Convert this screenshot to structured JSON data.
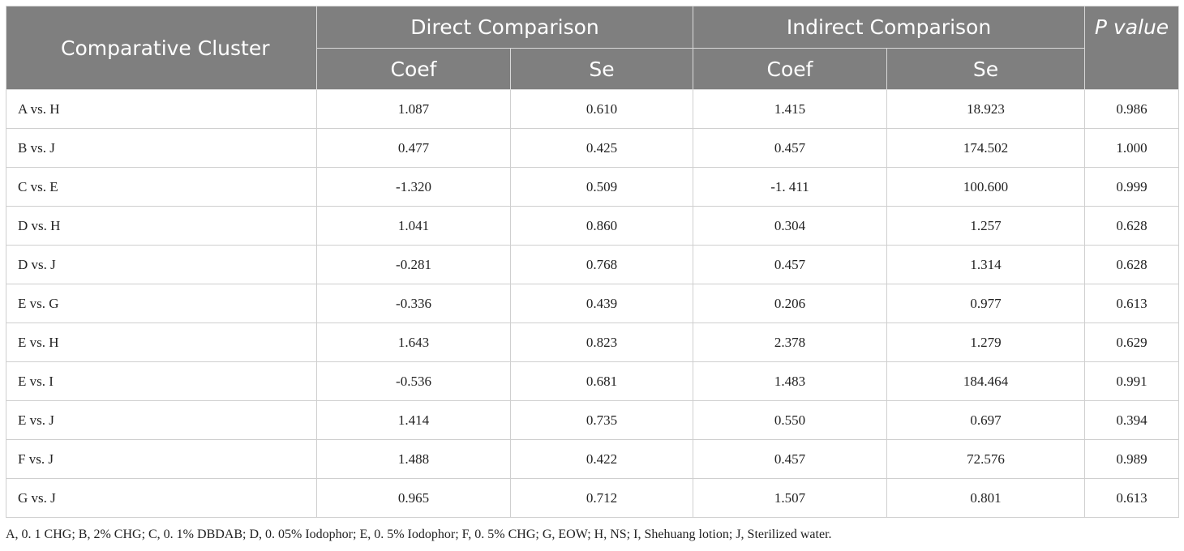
{
  "header": {
    "cluster": "Comparative Cluster",
    "direct": "Direct Comparison",
    "indirect": "Indirect Comparison",
    "pvalue": "P value",
    "coef": "Coef",
    "se": "Se"
  },
  "rows": [
    {
      "cluster": "A vs. H",
      "d_coef": "1.087",
      "d_se": "0.610",
      "i_coef": "1.415",
      "i_se": "18.923",
      "p": "0.986"
    },
    {
      "cluster": "B vs. J",
      "d_coef": "0.477",
      "d_se": "0.425",
      "i_coef": "0.457",
      "i_se": "174.502",
      "p": "1.000"
    },
    {
      "cluster": "C vs. E",
      "d_coef": "-1.320",
      "d_se": "0.509",
      "i_coef": "-1. 411",
      "i_se": "100.600",
      "p": "0.999"
    },
    {
      "cluster": "D vs. H",
      "d_coef": "1.041",
      "d_se": "0.860",
      "i_coef": "0.304",
      "i_se": "1.257",
      "p": "0.628"
    },
    {
      "cluster": "D vs. J",
      "d_coef": "-0.281",
      "d_se": "0.768",
      "i_coef": "0.457",
      "i_se": "1.314",
      "p": "0.628"
    },
    {
      "cluster": "E vs. G",
      "d_coef": "-0.336",
      "d_se": "0.439",
      "i_coef": "0.206",
      "i_se": "0.977",
      "p": "0.613"
    },
    {
      "cluster": "E vs. H",
      "d_coef": "1.643",
      "d_se": "0.823",
      "i_coef": "2.378",
      "i_se": "1.279",
      "p": "0.629"
    },
    {
      "cluster": "E vs. I",
      "d_coef": "-0.536",
      "d_se": "0.681",
      "i_coef": "1.483",
      "i_se": "184.464",
      "p": "0.991"
    },
    {
      "cluster": "E vs. J",
      "d_coef": "1.414",
      "d_se": "0.735",
      "i_coef": "0.550",
      "i_se": "0.697",
      "p": "0.394"
    },
    {
      "cluster": "F vs. J",
      "d_coef": "1.488",
      "d_se": "0.422",
      "i_coef": "0.457",
      "i_se": "72.576",
      "p": "0.989"
    },
    {
      "cluster": "G vs. J",
      "d_coef": "0.965",
      "d_se": "0.712",
      "i_coef": "1.507",
      "i_se": "0.801",
      "p": "0.613"
    }
  ],
  "footnote": "A, 0. 1 CHG; B, 2% CHG; C, 0. 1% DBDAB; D, 0. 05% Iodophor; E, 0. 5% Iodophor; F, 0. 5% CHG; G, EOW; H, NS; I, Shehuang lotion; J, Sterilized water."
}
